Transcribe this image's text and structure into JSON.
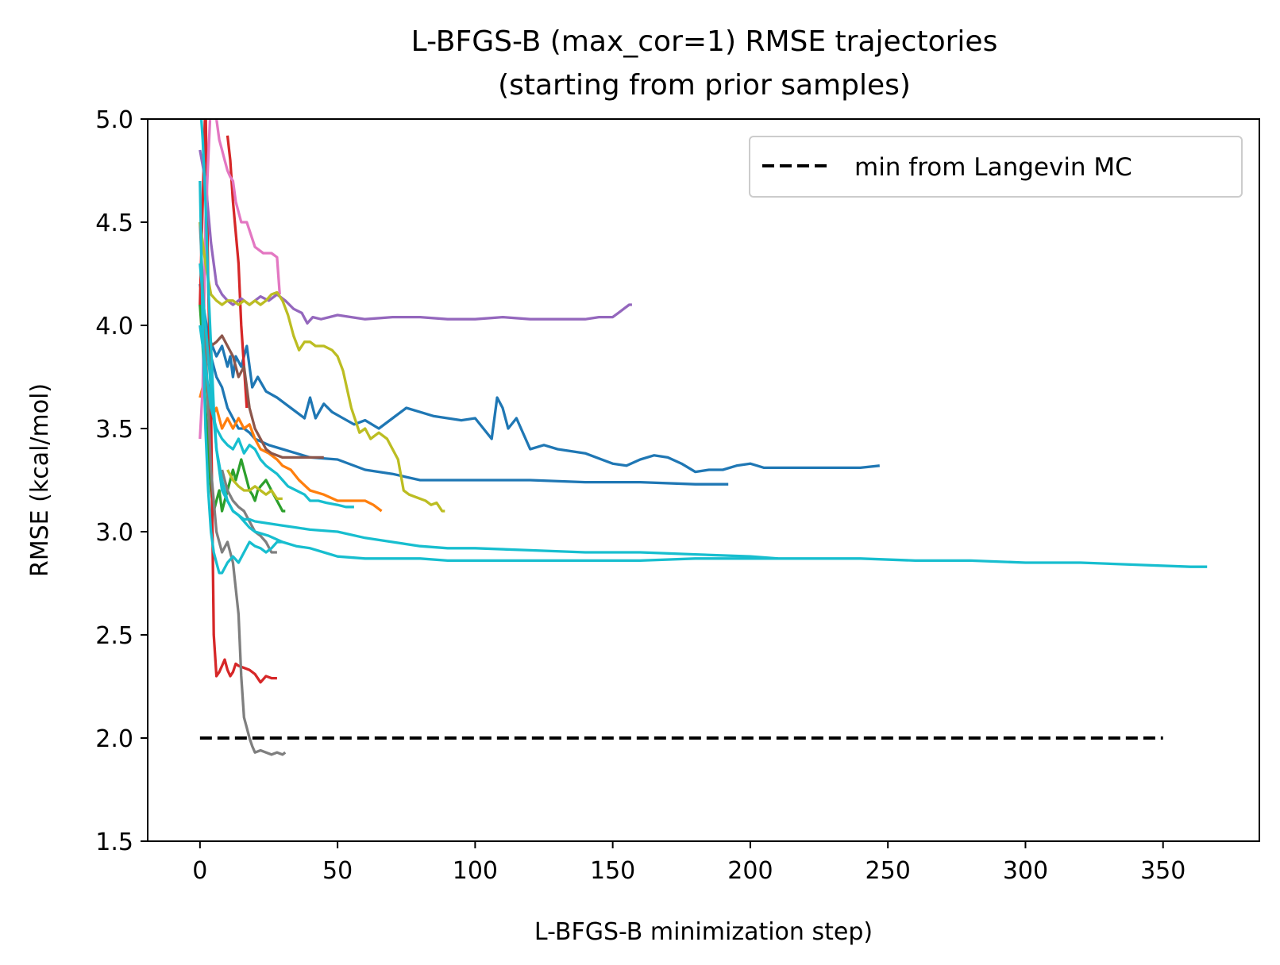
{
  "chart_data": {
    "type": "line",
    "title": [
      "L-BFGS-B (max_cor=1) RMSE trajectories",
      "(starting from prior samples)"
    ],
    "xlabel": "L-BFGS-B minimization step)",
    "ylabel": "RMSE (kcal/mol)",
    "xlim": [
      -19,
      385
    ],
    "ylim": [
      1.5,
      5.0
    ],
    "xticks": [
      0,
      50,
      100,
      150,
      200,
      250,
      300,
      350
    ],
    "yticks": [
      1.5,
      2.0,
      2.5,
      3.0,
      3.5,
      4.0,
      4.5,
      5.0
    ],
    "grid": false,
    "legend": {
      "placement": "top-right",
      "entries": [
        {
          "label": "min from Langevin MC",
          "style": "dashed",
          "color": "#000000"
        }
      ]
    },
    "reference_line": {
      "name": "min from Langevin MC",
      "x": [
        0,
        350
      ],
      "y": [
        2.0,
        2.0
      ],
      "color": "#000000",
      "style": "dashed"
    },
    "series": [
      {
        "color": "#1f77b4",
        "x": [
          0,
          3,
          6,
          8,
          10,
          11,
          12,
          13,
          15,
          17,
          19,
          21,
          24,
          28,
          33,
          38,
          40,
          42,
          45,
          48,
          52,
          56,
          60,
          65,
          70,
          75,
          80,
          85,
          90,
          95,
          100,
          103,
          106,
          108,
          110,
          112,
          115,
          120,
          125,
          130,
          140,
          150,
          155,
          160,
          165,
          170,
          175,
          180,
          185,
          190,
          195,
          200,
          205,
          210,
          220,
          230,
          240,
          247
        ],
        "y": [
          4.2,
          3.95,
          3.85,
          3.9,
          3.8,
          3.85,
          3.75,
          3.85,
          3.8,
          3.9,
          3.7,
          3.75,
          3.68,
          3.65,
          3.6,
          3.55,
          3.65,
          3.55,
          3.62,
          3.58,
          3.55,
          3.52,
          3.54,
          3.5,
          3.55,
          3.6,
          3.58,
          3.56,
          3.55,
          3.54,
          3.55,
          3.5,
          3.45,
          3.65,
          3.6,
          3.5,
          3.55,
          3.4,
          3.42,
          3.4,
          3.38,
          3.33,
          3.32,
          3.35,
          3.37,
          3.36,
          3.33,
          3.29,
          3.3,
          3.3,
          3.32,
          3.33,
          3.31,
          3.31,
          3.31,
          3.31,
          3.31,
          3.32
        ]
      },
      {
        "color": "#1f77b4",
        "x": [
          0,
          2,
          4,
          6,
          8,
          10,
          12,
          14,
          16,
          18,
          20,
          25,
          30,
          35,
          40,
          50,
          60,
          70,
          80,
          90,
          100,
          120,
          140,
          160,
          180,
          192
        ],
        "y": [
          4.1,
          3.9,
          3.85,
          3.75,
          3.7,
          3.6,
          3.55,
          3.5,
          3.5,
          3.48,
          3.45,
          3.42,
          3.4,
          3.38,
          3.36,
          3.35,
          3.3,
          3.28,
          3.25,
          3.25,
          3.25,
          3.25,
          3.24,
          3.24,
          3.23,
          3.23
        ]
      },
      {
        "color": "#ff7f0e",
        "x": [
          0,
          2,
          4,
          6,
          8,
          10,
          12,
          14,
          16,
          18,
          20,
          22,
          25,
          28,
          30,
          33,
          36,
          40,
          45,
          50,
          55,
          60,
          63,
          66
        ],
        "y": [
          3.65,
          3.75,
          3.55,
          3.6,
          3.5,
          3.55,
          3.5,
          3.55,
          3.5,
          3.52,
          3.45,
          3.4,
          3.38,
          3.35,
          3.32,
          3.3,
          3.25,
          3.2,
          3.18,
          3.15,
          3.15,
          3.15,
          3.13,
          3.1
        ]
      },
      {
        "color": "#2ca02c",
        "x": [
          0,
          1,
          2,
          3,
          4,
          5,
          6,
          7,
          8,
          9,
          10,
          11,
          12,
          13,
          14,
          15,
          16,
          17,
          18,
          19,
          20,
          21,
          22,
          24,
          26,
          28,
          30,
          31
        ],
        "y": [
          4.1,
          3.9,
          3.6,
          3.4,
          3.2,
          3.1,
          3.15,
          3.2,
          3.1,
          3.15,
          3.2,
          3.25,
          3.3,
          3.25,
          3.3,
          3.35,
          3.3,
          3.25,
          3.2,
          3.18,
          3.15,
          3.2,
          3.22,
          3.25,
          3.2,
          3.15,
          3.1,
          3.1
        ]
      },
      {
        "color": "#d62728",
        "x": [
          0,
          1,
          2,
          3,
          4,
          5,
          6,
          7,
          8,
          9,
          10,
          11,
          12,
          13,
          14,
          16,
          18,
          20,
          22,
          24,
          26,
          28
        ],
        "y": [
          4.1,
          4.6,
          5.1,
          4.2,
          3.6,
          2.5,
          2.3,
          2.32,
          2.35,
          2.38,
          2.33,
          2.3,
          2.32,
          2.36,
          2.35,
          2.34,
          2.33,
          2.31,
          2.27,
          2.3,
          2.29,
          2.29
        ]
      },
      {
        "color": "#d62728",
        "x": [
          10,
          11,
          12,
          13,
          14,
          15,
          16,
          17
        ],
        "y": [
          4.92,
          4.8,
          4.6,
          4.45,
          4.3,
          4.0,
          3.8,
          3.6
        ]
      },
      {
        "color": "#9467bd",
        "x": [
          0,
          2,
          4,
          6,
          8,
          10,
          12,
          15,
          18,
          20,
          22,
          25,
          28,
          31,
          34,
          37,
          39,
          41,
          44,
          47,
          50,
          55,
          60,
          70,
          80,
          90,
          100,
          110,
          120,
          130,
          140,
          145,
          150,
          152,
          154,
          156,
          157
        ],
        "y": [
          4.85,
          4.7,
          4.4,
          4.2,
          4.15,
          4.12,
          4.1,
          4.13,
          4.1,
          4.12,
          4.14,
          4.12,
          4.15,
          4.12,
          4.08,
          4.06,
          4.01,
          4.04,
          4.03,
          4.04,
          4.05,
          4.04,
          4.03,
          4.04,
          4.04,
          4.03,
          4.03,
          4.04,
          4.03,
          4.03,
          4.03,
          4.04,
          4.04,
          4.06,
          4.08,
          4.1,
          4.1
        ]
      },
      {
        "color": "#8c564b",
        "x": [
          0,
          2,
          4,
          6,
          8,
          10,
          12,
          14,
          16,
          18,
          20,
          22,
          24,
          26,
          28,
          30,
          33,
          36,
          40,
          45
        ],
        "y": [
          4.0,
          3.95,
          3.9,
          3.92,
          3.95,
          3.9,
          3.85,
          3.75,
          3.8,
          3.6,
          3.5,
          3.45,
          3.4,
          3.38,
          3.37,
          3.36,
          3.36,
          3.36,
          3.36,
          3.36
        ]
      },
      {
        "color": "#e377c2",
        "x": [
          0,
          1,
          2,
          3,
          4,
          5,
          6,
          7,
          8,
          9,
          10,
          11,
          12,
          13,
          15,
          17,
          20,
          23,
          26,
          28,
          29
        ],
        "y": [
          3.45,
          3.7,
          4.5,
          4.8,
          5.1,
          5.1,
          5.0,
          4.9,
          4.85,
          4.8,
          4.75,
          4.72,
          4.7,
          4.6,
          4.5,
          4.5,
          4.38,
          4.35,
          4.35,
          4.33,
          4.15
        ]
      },
      {
        "color": "#7f7f7f",
        "x": [
          0,
          2,
          4,
          6,
          8,
          10,
          12,
          14,
          15,
          16,
          17,
          18,
          19,
          20,
          22,
          24,
          26,
          28,
          30,
          31
        ],
        "y": [
          4.5,
          3.9,
          3.3,
          3.0,
          2.9,
          2.95,
          2.85,
          2.6,
          2.3,
          2.1,
          2.05,
          2.0,
          1.96,
          1.93,
          1.94,
          1.93,
          1.92,
          1.93,
          1.92,
          1.93
        ]
      },
      {
        "color": "#7f7f7f",
        "x": [
          8,
          10,
          12,
          14,
          16,
          18,
          20,
          22,
          24,
          26,
          28
        ],
        "y": [
          3.3,
          3.2,
          3.15,
          3.12,
          3.1,
          3.05,
          3.0,
          2.98,
          2.95,
          2.9,
          2.9
        ]
      },
      {
        "color": "#bcbd22",
        "x": [
          0,
          2,
          4,
          6,
          8,
          10,
          12,
          14,
          16,
          18,
          20,
          22,
          24,
          26,
          28,
          30,
          32,
          34,
          36,
          38,
          40,
          42,
          45,
          48,
          50,
          52,
          55,
          58,
          60,
          62,
          65,
          68,
          70,
          72,
          74,
          76,
          78,
          80,
          82,
          84,
          86,
          88,
          89
        ],
        "y": [
          4.5,
          4.3,
          4.15,
          4.12,
          4.1,
          4.12,
          4.12,
          4.1,
          4.12,
          4.1,
          4.12,
          4.1,
          4.12,
          4.15,
          4.16,
          4.12,
          4.05,
          3.95,
          3.88,
          3.92,
          3.92,
          3.9,
          3.9,
          3.88,
          3.85,
          3.78,
          3.6,
          3.48,
          3.5,
          3.45,
          3.48,
          3.45,
          3.4,
          3.35,
          3.2,
          3.18,
          3.17,
          3.16,
          3.15,
          3.13,
          3.14,
          3.1,
          3.1
        ]
      },
      {
        "color": "#bcbd22",
        "x": [
          10,
          12,
          14,
          16,
          18,
          20,
          22,
          24,
          26,
          28,
          30
        ],
        "y": [
          3.3,
          3.25,
          3.22,
          3.2,
          3.2,
          3.22,
          3.2,
          3.18,
          3.2,
          3.16,
          3.16
        ]
      },
      {
        "color": "#17becf",
        "x": [
          0,
          1,
          2,
          3,
          4,
          5,
          6,
          7,
          8,
          10,
          12,
          14,
          16,
          18,
          20,
          25,
          30,
          35,
          40,
          45,
          50,
          60,
          70,
          80,
          90,
          100,
          120,
          140,
          160,
          180,
          200,
          220,
          240,
          260,
          280,
          300,
          320,
          340,
          360,
          366
        ],
        "y": [
          5.1,
          4.9,
          4.6,
          4.2,
          3.9,
          3.6,
          3.4,
          3.3,
          3.2,
          3.15,
          3.1,
          3.08,
          3.05,
          3.02,
          3.0,
          2.98,
          2.95,
          2.93,
          2.92,
          2.9,
          2.88,
          2.87,
          2.87,
          2.87,
          2.86,
          2.86,
          2.86,
          2.86,
          2.86,
          2.87,
          2.87,
          2.87,
          2.87,
          2.86,
          2.86,
          2.85,
          2.85,
          2.84,
          2.83,
          2.83
        ]
      },
      {
        "color": "#17becf",
        "x": [
          0,
          2,
          4,
          6,
          8,
          10,
          12,
          14,
          16,
          18,
          20,
          25,
          30,
          35,
          40,
          50,
          60,
          70,
          80,
          90,
          100,
          120,
          140,
          160,
          180,
          200,
          210
        ],
        "y": [
          4.3,
          4.0,
          3.7,
          3.4,
          3.25,
          3.15,
          3.1,
          3.08,
          3.06,
          3.06,
          3.05,
          3.04,
          3.03,
          3.02,
          3.01,
          3.0,
          2.97,
          2.95,
          2.93,
          2.92,
          2.92,
          2.91,
          2.9,
          2.9,
          2.89,
          2.88,
          2.87
        ]
      },
      {
        "color": "#17becf",
        "x": [
          0,
          2,
          4,
          6,
          8,
          10,
          12,
          14,
          16,
          18,
          20,
          22,
          24,
          26,
          28,
          30,
          32,
          35,
          38,
          40,
          43,
          46,
          50,
          53,
          56
        ],
        "y": [
          4.0,
          3.8,
          3.6,
          3.5,
          3.45,
          3.42,
          3.4,
          3.45,
          3.38,
          3.42,
          3.4,
          3.35,
          3.32,
          3.3,
          3.28,
          3.25,
          3.22,
          3.2,
          3.18,
          3.15,
          3.15,
          3.14,
          3.13,
          3.12,
          3.12
        ]
      },
      {
        "color": "#17becf",
        "x": [
          0,
          1,
          2,
          3,
          4,
          5,
          6,
          7,
          8,
          10,
          12,
          14,
          16,
          18,
          20,
          22,
          24,
          26,
          28,
          30
        ],
        "y": [
          4.7,
          4.0,
          3.5,
          3.2,
          3.0,
          2.9,
          2.85,
          2.8,
          2.8,
          2.85,
          2.88,
          2.85,
          2.9,
          2.95,
          2.93,
          2.92,
          2.9,
          2.92,
          2.95,
          2.95
        ]
      }
    ]
  }
}
